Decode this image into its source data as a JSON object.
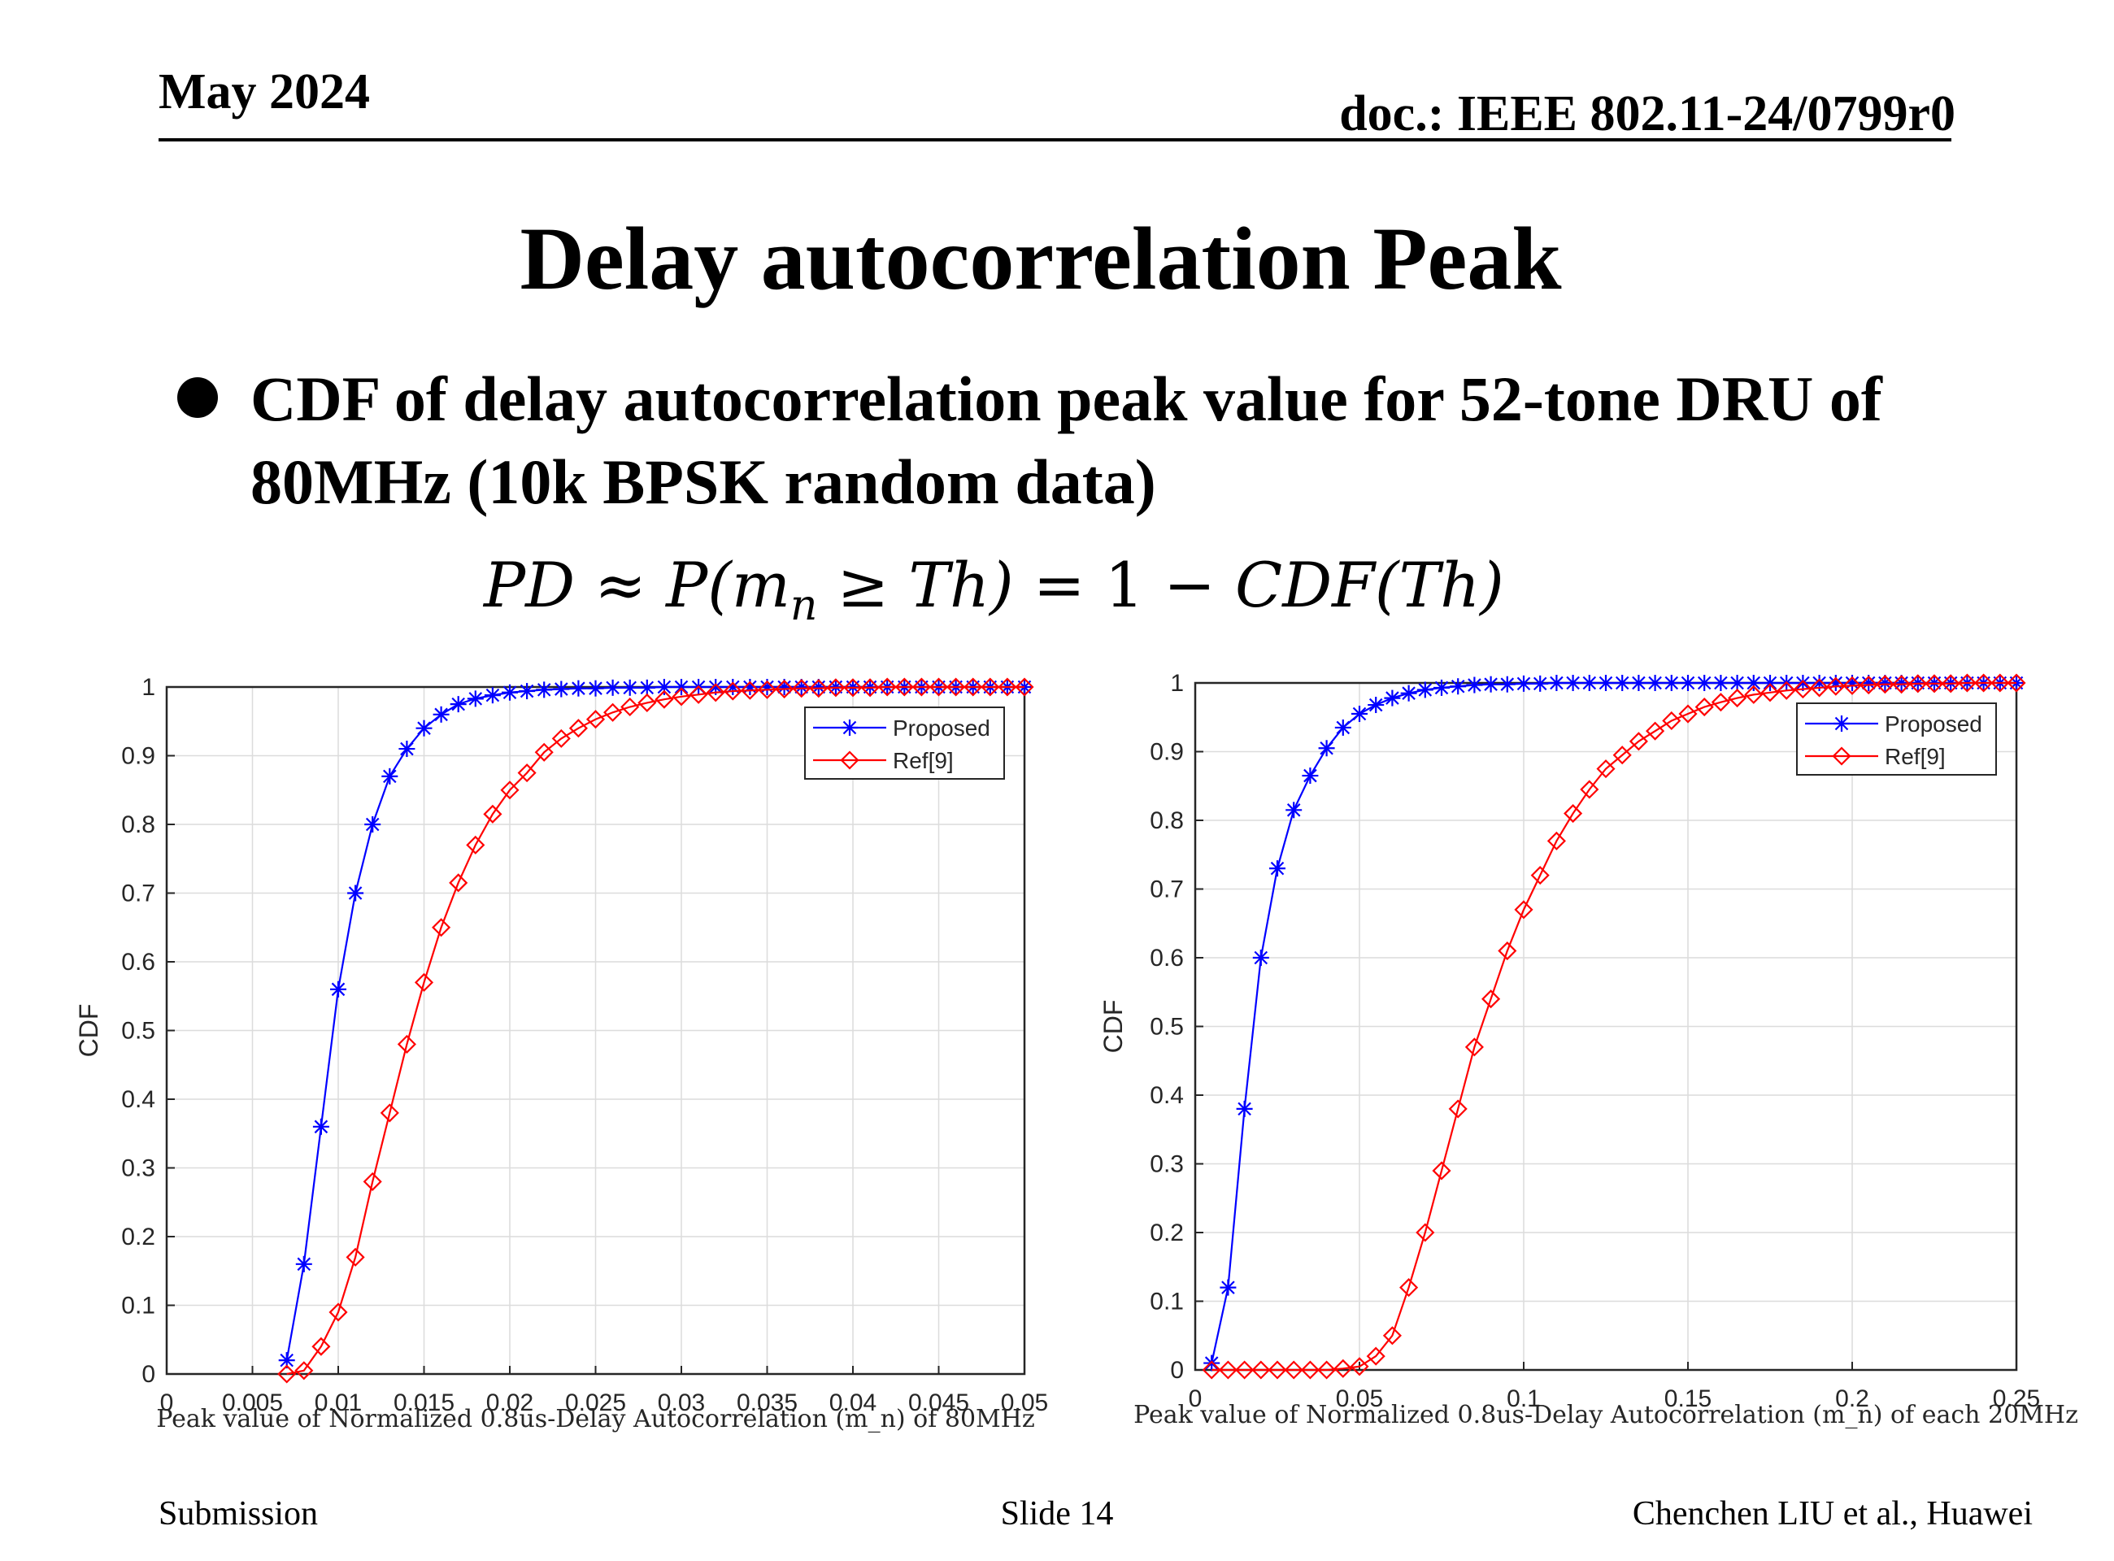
{
  "header": {
    "date": "May 2024",
    "doc": "doc.: IEEE 802.11-24/0799r0"
  },
  "title": "Delay autocorrelation Peak",
  "bullet": "CDF of delay autocorrelation peak value for 52-tone DRU of 80MHz (10k BPSK random data)",
  "formula": {
    "lhs": "PD ≈ P(m",
    "sub": "n",
    "mid": " ≥ Th) = ",
    "num": "1",
    "rhs": " − CDF(Th)"
  },
  "footer": {
    "left": "Submission",
    "center": "Slide 14",
    "right": "Chenchen LIU et al., Huawei"
  },
  "colors": {
    "proposed": "#0000ff",
    "ref": "#ff0000"
  },
  "chart_data": [
    {
      "type": "line",
      "xlabel": "Peak value of Normalized 0.8us-Delay Autocorrelation (m_n) of 80MHz",
      "ylabel": "CDF",
      "xlim": [
        0,
        0.05
      ],
      "ylim": [
        0,
        1
      ],
      "xticks": [
        "0",
        "0.005",
        "0.01",
        "0.015",
        "0.02",
        "0.025",
        "0.03",
        "0.035",
        "0.04",
        "0.045",
        "0.05"
      ],
      "yticks": [
        "0",
        "0.1",
        "0.2",
        "0.3",
        "0.4",
        "0.5",
        "0.6",
        "0.7",
        "0.8",
        "0.9",
        "1"
      ],
      "grid": true,
      "legend": "top-right",
      "series": [
        {
          "name": "Proposed",
          "marker": "asterisk",
          "x": [
            0.007,
            0.008,
            0.009,
            0.01,
            0.011,
            0.012,
            0.013,
            0.014,
            0.015,
            0.016,
            0.017,
            0.018,
            0.019,
            0.02,
            0.021,
            0.022,
            0.023,
            0.024,
            0.025,
            0.026,
            0.027,
            0.028,
            0.029,
            0.03,
            0.031,
            0.032,
            0.033,
            0.034,
            0.035,
            0.036,
            0.037,
            0.038,
            0.039,
            0.04,
            0.041,
            0.042,
            0.043,
            0.044,
            0.045,
            0.046,
            0.047,
            0.048,
            0.049,
            0.05
          ],
          "y": [
            0.02,
            0.16,
            0.36,
            0.56,
            0.7,
            0.8,
            0.87,
            0.91,
            0.94,
            0.96,
            0.975,
            0.983,
            0.988,
            0.992,
            0.994,
            0.996,
            0.997,
            0.998,
            0.998,
            0.999,
            0.999,
            0.999,
            1,
            1,
            1,
            1,
            1,
            1,
            1,
            1,
            1,
            1,
            1,
            1,
            1,
            1,
            1,
            1,
            1,
            1,
            1,
            1,
            1,
            1
          ]
        },
        {
          "name": "Ref[9]",
          "marker": "diamond",
          "x": [
            0.007,
            0.008,
            0.009,
            0.01,
            0.011,
            0.012,
            0.013,
            0.014,
            0.015,
            0.016,
            0.017,
            0.018,
            0.019,
            0.02,
            0.021,
            0.022,
            0.023,
            0.024,
            0.025,
            0.026,
            0.027,
            0.028,
            0.029,
            0.03,
            0.031,
            0.032,
            0.033,
            0.034,
            0.035,
            0.036,
            0.037,
            0.038,
            0.039,
            0.04,
            0.041,
            0.042,
            0.043,
            0.044,
            0.045,
            0.046,
            0.047,
            0.048,
            0.049,
            0.05
          ],
          "y": [
            0.0,
            0.005,
            0.04,
            0.09,
            0.17,
            0.28,
            0.38,
            0.48,
            0.57,
            0.65,
            0.715,
            0.77,
            0.815,
            0.85,
            0.875,
            0.905,
            0.925,
            0.94,
            0.953,
            0.963,
            0.971,
            0.977,
            0.982,
            0.986,
            0.989,
            0.992,
            0.994,
            0.995,
            0.996,
            0.997,
            0.998,
            0.998,
            0.999,
            0.999,
            0.999,
            1,
            1,
            1,
            1,
            1,
            1,
            1,
            1,
            1
          ]
        }
      ]
    },
    {
      "type": "line",
      "xlabel": "Peak value of Normalized 0.8us-Delay Autocorrelation (m_n) of each 20MHz",
      "ylabel": "CDF",
      "xlim": [
        0,
        0.25
      ],
      "ylim": [
        0,
        1
      ],
      "xticks": [
        "0",
        "0.05",
        "0.1",
        "0.15",
        "0.2",
        "0.25"
      ],
      "yticks": [
        "0",
        "0.1",
        "0.2",
        "0.3",
        "0.4",
        "0.5",
        "0.6",
        "0.7",
        "0.8",
        "0.9",
        "1"
      ],
      "grid": true,
      "legend": "top-right",
      "series": [
        {
          "name": "Proposed",
          "marker": "asterisk",
          "x": [
            0.005,
            0.01,
            0.015,
            0.02,
            0.025,
            0.03,
            0.035,
            0.04,
            0.045,
            0.05,
            0.055,
            0.06,
            0.065,
            0.07,
            0.075,
            0.08,
            0.085,
            0.09,
            0.095,
            0.1,
            0.105,
            0.11,
            0.115,
            0.12,
            0.125,
            0.13,
            0.135,
            0.14,
            0.145,
            0.15,
            0.155,
            0.16,
            0.165,
            0.17,
            0.175,
            0.18,
            0.185,
            0.19,
            0.195,
            0.2,
            0.205,
            0.21,
            0.215,
            0.22,
            0.225,
            0.23,
            0.235,
            0.24,
            0.245,
            0.25
          ],
          "y": [
            0.01,
            0.12,
            0.38,
            0.6,
            0.73,
            0.815,
            0.865,
            0.905,
            0.935,
            0.955,
            0.968,
            0.978,
            0.985,
            0.99,
            0.993,
            0.995,
            0.997,
            0.998,
            0.998,
            0.999,
            0.999,
            1,
            1,
            1,
            1,
            1,
            1,
            1,
            1,
            1,
            1,
            1,
            1,
            1,
            1,
            1,
            1,
            1,
            1,
            1,
            1,
            1,
            1,
            1,
            1,
            1,
            1,
            1,
            1,
            1
          ]
        },
        {
          "name": "Ref[9]",
          "marker": "diamond",
          "x": [
            0.005,
            0.01,
            0.015,
            0.02,
            0.025,
            0.03,
            0.035,
            0.04,
            0.045,
            0.05,
            0.055,
            0.06,
            0.065,
            0.07,
            0.075,
            0.08,
            0.085,
            0.09,
            0.095,
            0.1,
            0.105,
            0.11,
            0.115,
            0.12,
            0.125,
            0.13,
            0.135,
            0.14,
            0.145,
            0.15,
            0.155,
            0.16,
            0.165,
            0.17,
            0.175,
            0.18,
            0.185,
            0.19,
            0.195,
            0.2,
            0.205,
            0.21,
            0.215,
            0.22,
            0.225,
            0.23,
            0.235,
            0.24,
            0.245,
            0.25
          ],
          "y": [
            0,
            0,
            0,
            0,
            0,
            0,
            0,
            0,
            0.002,
            0.005,
            0.02,
            0.05,
            0.12,
            0.2,
            0.29,
            0.38,
            0.47,
            0.54,
            0.61,
            0.67,
            0.72,
            0.77,
            0.81,
            0.845,
            0.875,
            0.895,
            0.915,
            0.93,
            0.945,
            0.955,
            0.965,
            0.972,
            0.978,
            0.983,
            0.986,
            0.989,
            0.991,
            0.993,
            0.995,
            0.996,
            0.997,
            0.998,
            0.998,
            0.999,
            0.999,
            0.999,
            1,
            1,
            1,
            1
          ]
        }
      ]
    }
  ]
}
